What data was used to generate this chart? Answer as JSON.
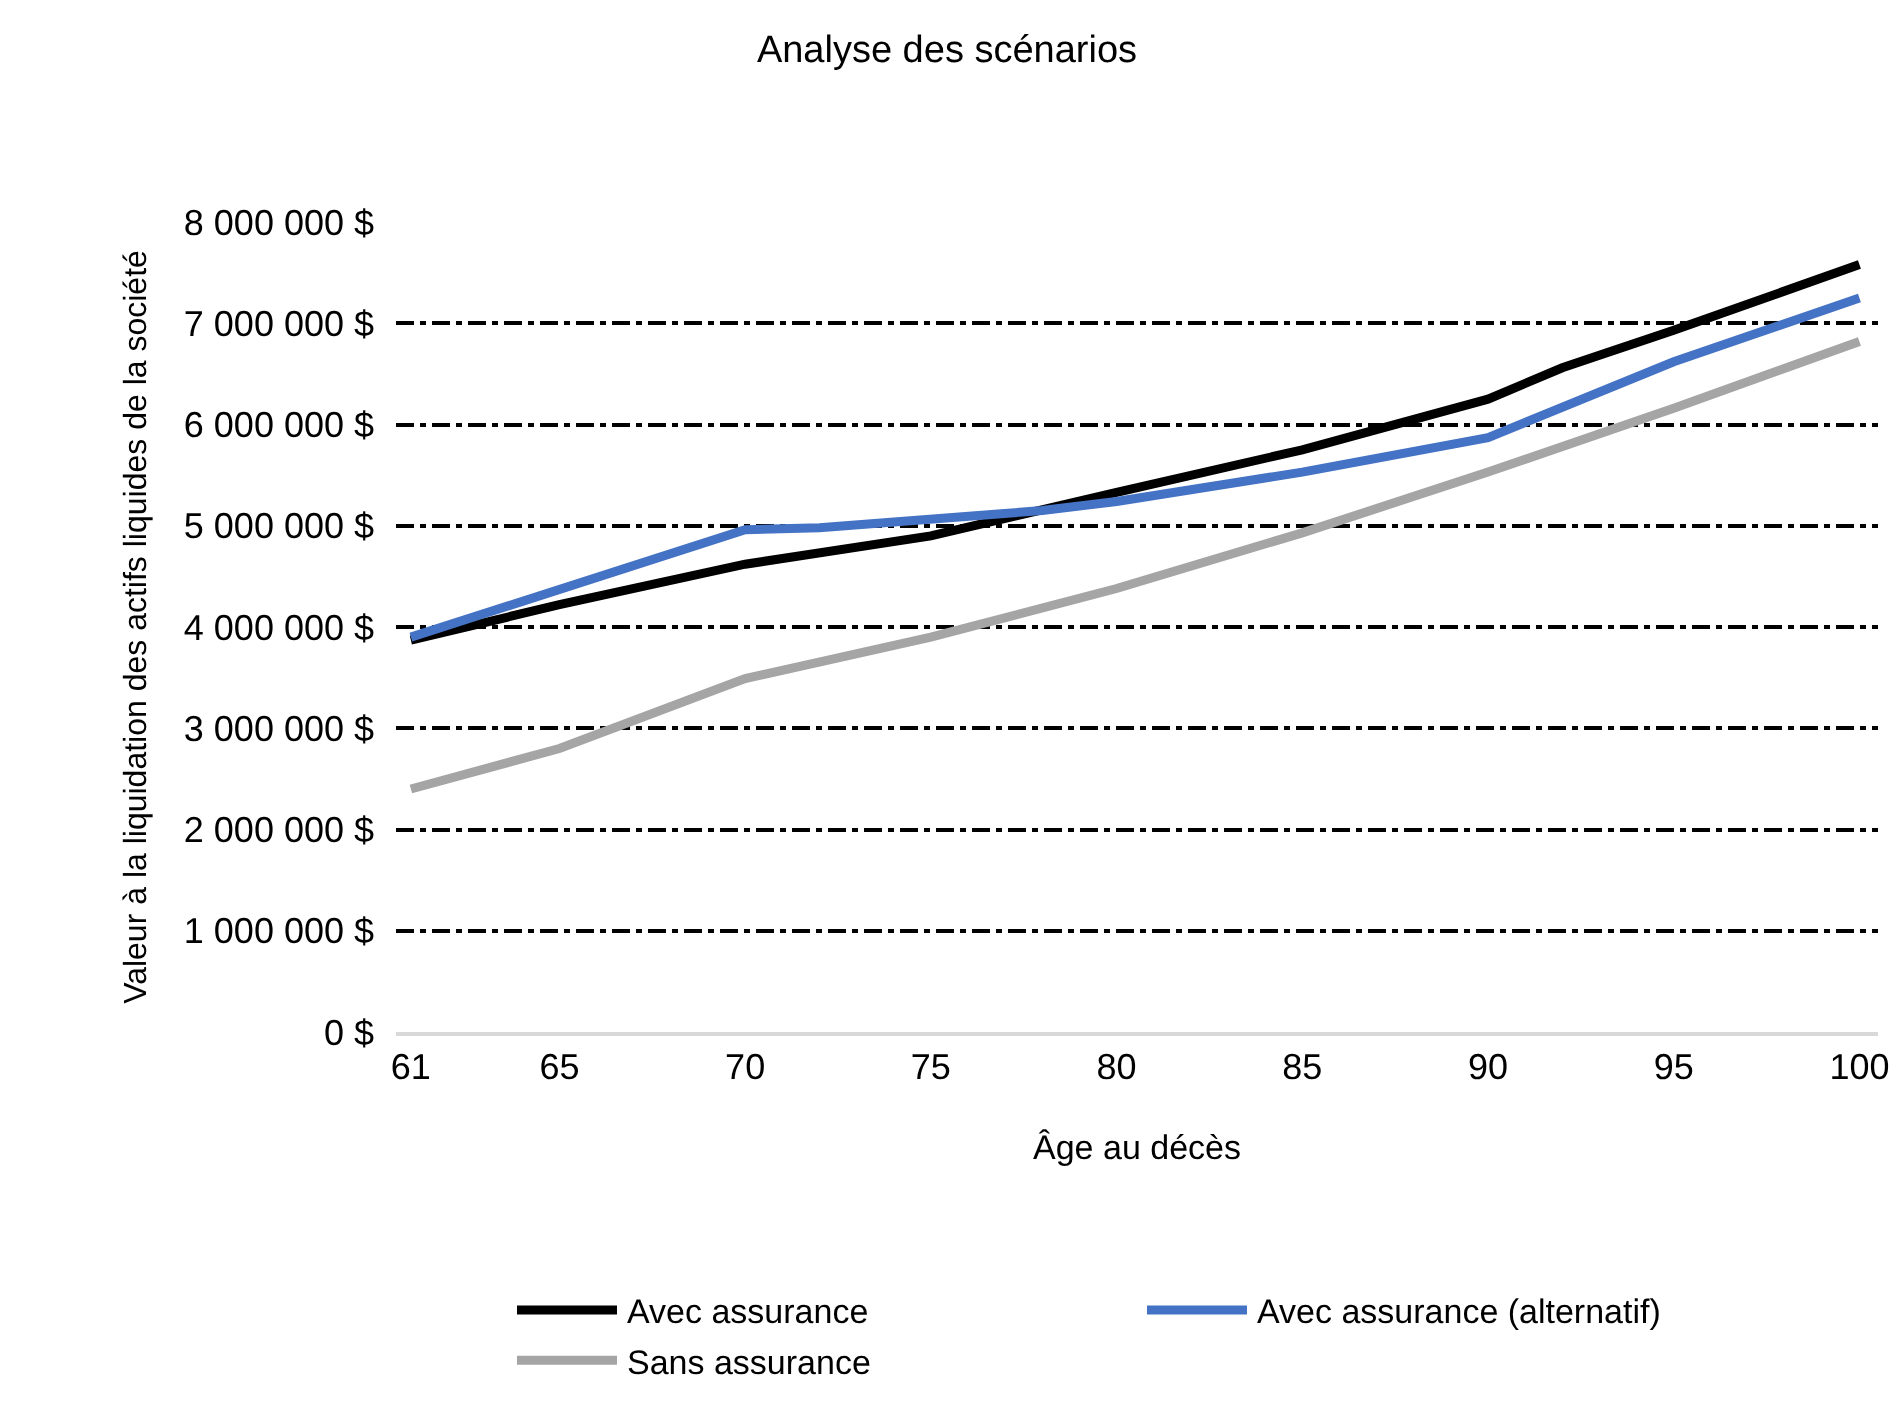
{
  "chart_data": {
    "type": "line",
    "title": "Analyse des scénarios",
    "xlabel": "Âge au décès",
    "ylabel": "Valeur à la liquidation des actifs liquides de la société",
    "xlim": [
      60.6,
      100.5
    ],
    "xticks": [
      61,
      65,
      70,
      75,
      80,
      85,
      90,
      95,
      100
    ],
    "ylim": [
      0,
      8000000
    ],
    "yticks": [
      {
        "value": 0,
        "label": "0 $"
      },
      {
        "value": 1000000,
        "label": "1 000 000 $"
      },
      {
        "value": 2000000,
        "label": "2 000 000 $"
      },
      {
        "value": 3000000,
        "label": "3 000 000 $"
      },
      {
        "value": 4000000,
        "label": "4 000 000 $"
      },
      {
        "value": 5000000,
        "label": "5 000 000 $"
      },
      {
        "value": 6000000,
        "label": "6 000 000 $"
      },
      {
        "value": 7000000,
        "label": "7 000 000 $"
      },
      {
        "value": 8000000,
        "label": "8 000 000 $"
      }
    ],
    "grid": "y",
    "legend": "bottom",
    "marker": "none",
    "line_style": "solid",
    "series": [
      {
        "name": "Avec assurance",
        "color": "#000000",
        "x": [
          61,
          65,
          70,
          75,
          80,
          85,
          90,
          92,
          95,
          100
        ],
        "values": [
          3870000,
          4220000,
          4620000,
          4900000,
          5330000,
          5750000,
          6250000,
          6560000,
          6930000,
          7580000
        ]
      },
      {
        "name": "Avec assurance (alternatif)",
        "color": "#4472c4",
        "x": [
          61,
          70,
          72,
          78,
          80,
          85,
          90,
          95,
          100
        ],
        "values": [
          3900000,
          4960000,
          4980000,
          5150000,
          5240000,
          5530000,
          5870000,
          6620000,
          7250000
        ]
      },
      {
        "name": "Sans assurance",
        "color": "#a5a5a5",
        "x": [
          61,
          65,
          70,
          75,
          80,
          85,
          90,
          95,
          100
        ],
        "values": [
          2400000,
          2800000,
          3490000,
          3900000,
          4380000,
          4930000,
          5530000,
          6160000,
          6820000
        ]
      }
    ]
  }
}
